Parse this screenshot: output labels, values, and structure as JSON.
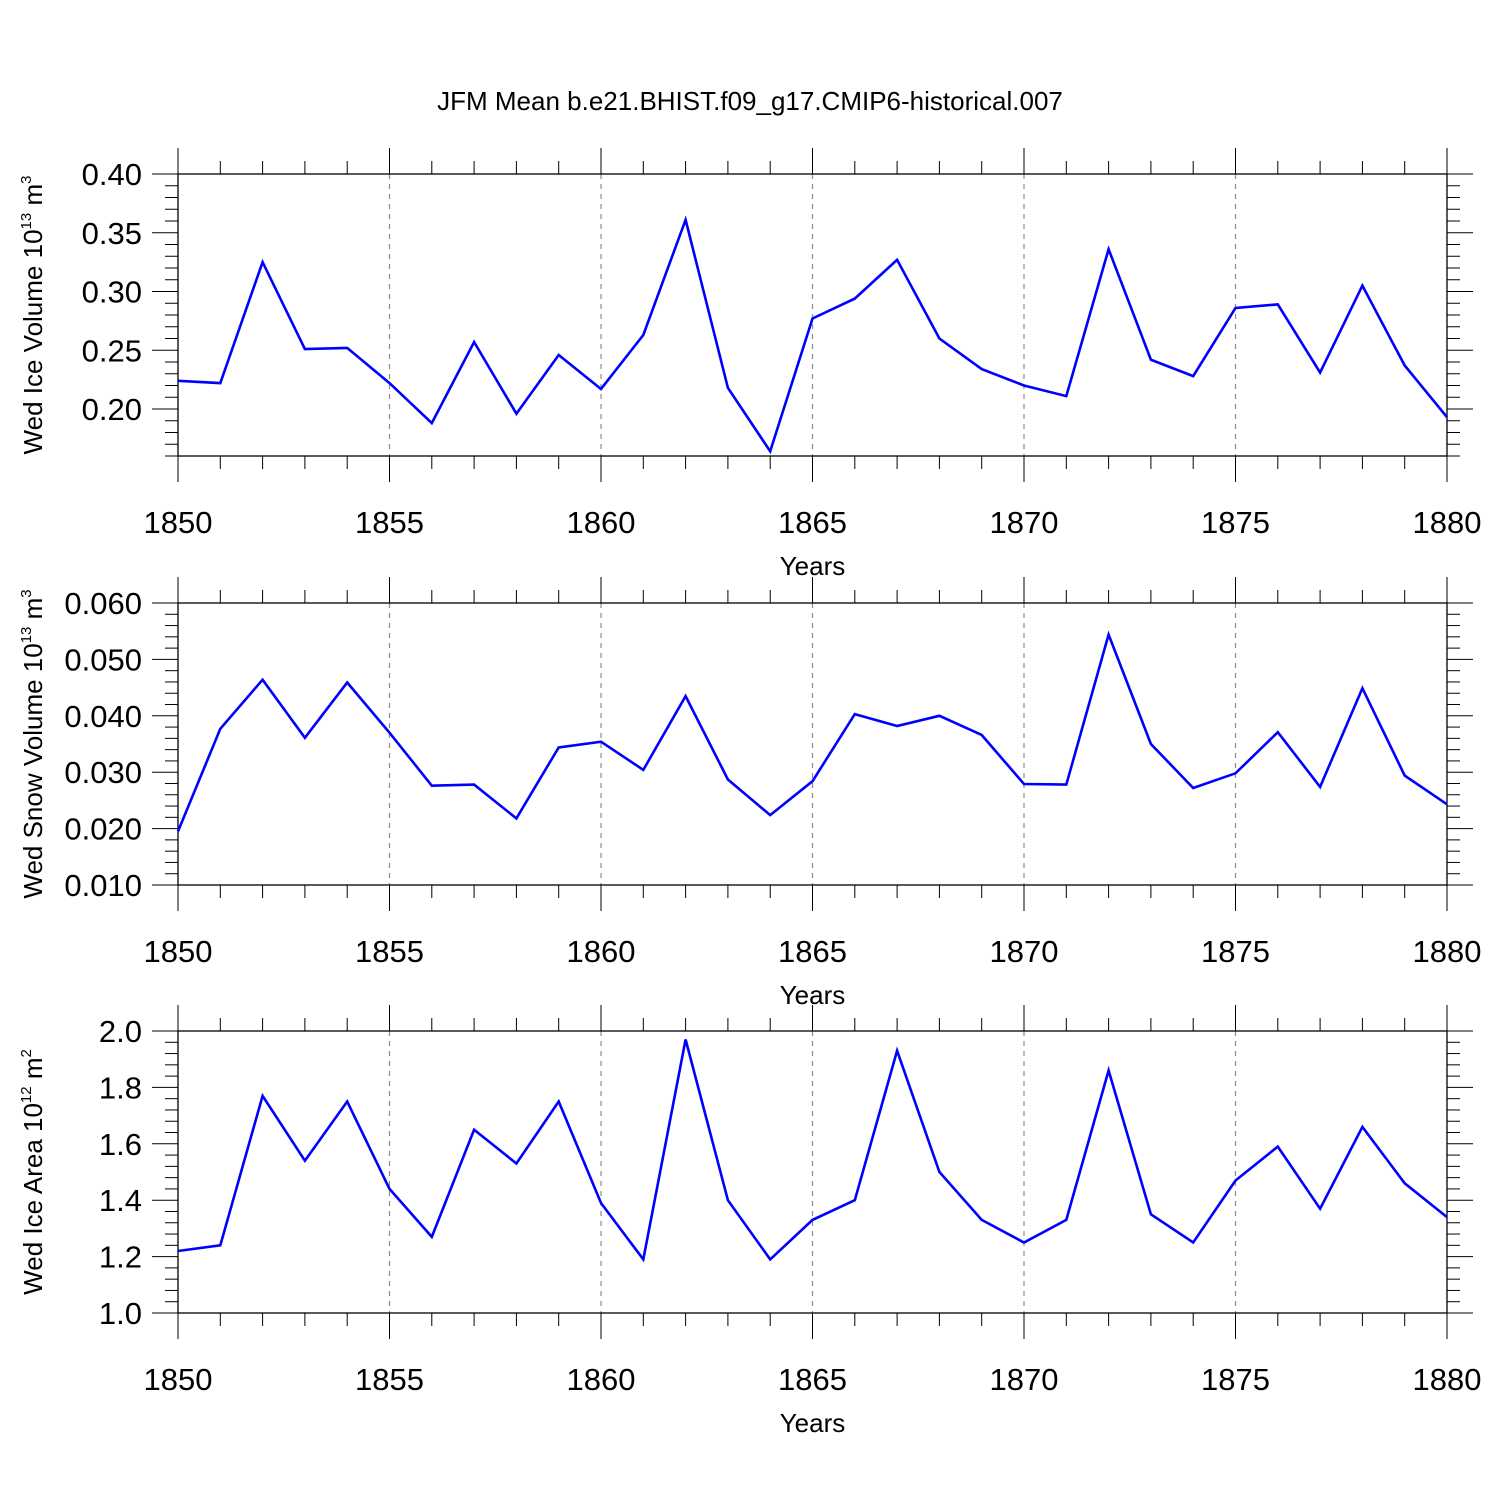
{
  "title": "JFM Mean b.e21.BHIST.f09_g17.CMIP6-historical.007",
  "colors": {
    "series": "#0000ff",
    "axis": "#000000",
    "grid": "#8c8c8c"
  },
  "chart_data": [
    {
      "type": "line",
      "ylabel": {
        "main": "Wed Ice Volume 10",
        "exp": "13",
        "unit": " m",
        "unit_exp": "3"
      },
      "xlabel": "Years",
      "xlim": [
        1850,
        1880
      ],
      "ylim": [
        0.16,
        0.4
      ],
      "yticks": [
        "0.20",
        "0.25",
        "0.30",
        "0.35",
        "0.40"
      ],
      "xticks": [
        "1850",
        "1855",
        "1860",
        "1865",
        "1870",
        "1875",
        "1880"
      ],
      "grid": "vertical dashed at major x ticks",
      "x": [
        1850,
        1851,
        1852,
        1853,
        1854,
        1855,
        1856,
        1857,
        1858,
        1859,
        1860,
        1861,
        1862,
        1863,
        1864,
        1865,
        1866,
        1867,
        1868,
        1869,
        1870,
        1871,
        1872,
        1873,
        1874,
        1875,
        1876,
        1877,
        1878,
        1879,
        1880
      ],
      "values": [
        0.224,
        0.222,
        0.325,
        0.251,
        0.252,
        0.222,
        0.188,
        0.257,
        0.196,
        0.246,
        0.217,
        0.263,
        0.361,
        0.218,
        0.164,
        0.277,
        0.294,
        0.327,
        0.26,
        0.234,
        0.22,
        0.211,
        0.336,
        0.242,
        0.228,
        0.286,
        0.289,
        0.231,
        0.305,
        0.237,
        0.193
      ]
    },
    {
      "type": "line",
      "ylabel": {
        "main": "Wed Snow Volume 10",
        "exp": "13",
        "unit": " m",
        "unit_exp": "3"
      },
      "xlabel": "Years",
      "xlim": [
        1850,
        1880
      ],
      "ylim": [
        0.01,
        0.06
      ],
      "yticks": [
        "0.010",
        "0.020",
        "0.030",
        "0.040",
        "0.050",
        "0.060"
      ],
      "xticks": [
        "1850",
        "1855",
        "1860",
        "1865",
        "1870",
        "1875",
        "1880"
      ],
      "grid": "vertical dashed at major x ticks",
      "x": [
        1850,
        1851,
        1852,
        1853,
        1854,
        1855,
        1856,
        1857,
        1858,
        1859,
        1860,
        1861,
        1862,
        1863,
        1864,
        1865,
        1866,
        1867,
        1868,
        1869,
        1870,
        1871,
        1872,
        1873,
        1874,
        1875,
        1876,
        1877,
        1878,
        1879,
        1880
      ],
      "values": [
        0.0195,
        0.0377,
        0.0464,
        0.0361,
        0.0459,
        0.037,
        0.0276,
        0.0278,
        0.0218,
        0.0344,
        0.0354,
        0.0304,
        0.0435,
        0.0287,
        0.0224,
        0.0284,
        0.0403,
        0.0382,
        0.04,
        0.0366,
        0.0279,
        0.0278,
        0.0544,
        0.035,
        0.0272,
        0.0298,
        0.0371,
        0.0274,
        0.0449,
        0.0294,
        0.0243
      ]
    },
    {
      "type": "line",
      "ylabel": {
        "main": "Wed Ice Area 10",
        "exp": "12",
        "unit": " m",
        "unit_exp": "2"
      },
      "xlabel": "Years",
      "xlim": [
        1850,
        1880
      ],
      "ylim": [
        1.0,
        2.0
      ],
      "yticks": [
        "1.0",
        "1.2",
        "1.4",
        "1.6",
        "1.8",
        "2.0"
      ],
      "xticks": [
        "1850",
        "1855",
        "1860",
        "1865",
        "1870",
        "1875",
        "1880"
      ],
      "grid": "vertical dashed at major x ticks",
      "x": [
        1850,
        1851,
        1852,
        1853,
        1854,
        1855,
        1856,
        1857,
        1858,
        1859,
        1860,
        1861,
        1862,
        1863,
        1864,
        1865,
        1866,
        1867,
        1868,
        1869,
        1870,
        1871,
        1872,
        1873,
        1874,
        1875,
        1876,
        1877,
        1878,
        1879,
        1880
      ],
      "values": [
        1.22,
        1.24,
        1.77,
        1.54,
        1.75,
        1.44,
        1.27,
        1.65,
        1.53,
        1.75,
        1.39,
        1.19,
        1.97,
        1.4,
        1.19,
        1.33,
        1.4,
        1.93,
        1.5,
        1.33,
        1.25,
        1.33,
        1.86,
        1.35,
        1.25,
        1.47,
        1.59,
        1.37,
        1.66,
        1.46,
        1.34
      ]
    }
  ]
}
